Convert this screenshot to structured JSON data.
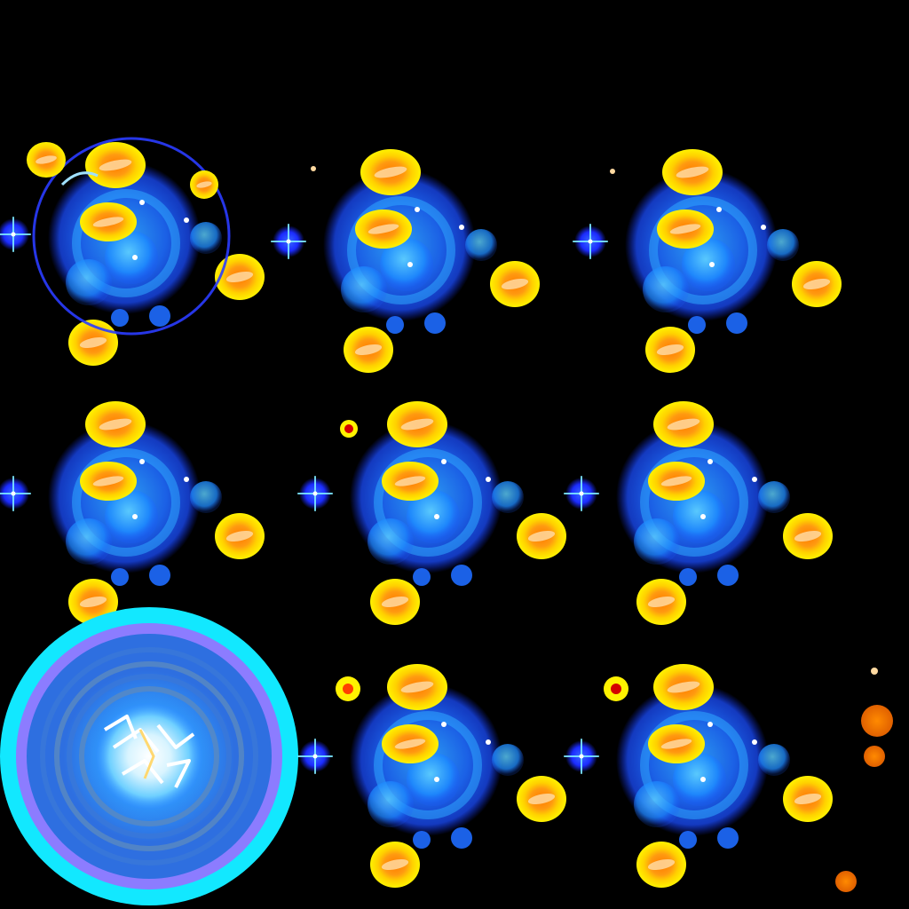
{
  "sprite_sheet": {
    "layout": "3x3 grid",
    "frame_count": 9,
    "frames": [
      {
        "frame": 1,
        "effect": "energy-orb",
        "variant": "ringed"
      },
      {
        "frame": 2,
        "effect": "energy-orb",
        "variant": "plain"
      },
      {
        "frame": 3,
        "effect": "energy-orb",
        "variant": "plain"
      },
      {
        "frame": 4,
        "effect": "energy-orb",
        "variant": "plain"
      },
      {
        "frame": 5,
        "effect": "energy-orb",
        "variant": "plain"
      },
      {
        "frame": 6,
        "effect": "energy-orb",
        "variant": "plain"
      },
      {
        "frame": 7,
        "effect": "shockwave-burst",
        "variant": "rings"
      },
      {
        "frame": 8,
        "effect": "energy-orb",
        "variant": "plain"
      },
      {
        "frame": 9,
        "effect": "energy-orb",
        "variant": "plain"
      }
    ],
    "background": "transparent",
    "colors": {
      "background": "#000000",
      "orb_core": "#1e6bff",
      "orb_light": "#2fa8ff",
      "flare_outer": "#fff200",
      "flare_mid": "#ffb000",
      "flare_inner": "#ff7a00",
      "flare_streak": "#ffd9a0",
      "star": "#1b2cff",
      "star_glint": "#7de8ff",
      "ring_cyan": "#12e8ff",
      "ring_violet": "#8c7cff",
      "ring_steel": "#5a8ac0",
      "burst_core": "#ffffff"
    }
  }
}
